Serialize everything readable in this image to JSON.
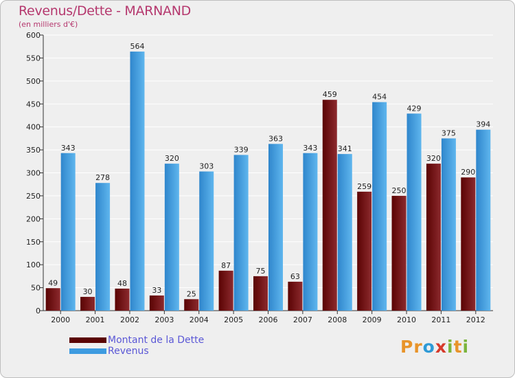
{
  "chart_data": {
    "type": "bar",
    "title": "Revenus/Dette - MARNAND",
    "subtitle": "(en milliers d'€)",
    "categories": [
      "2000",
      "2001",
      "2002",
      "2003",
      "2004",
      "2005",
      "2006",
      "2007",
      "2008",
      "2009",
      "2010",
      "2011",
      "2012"
    ],
    "series": [
      {
        "name": "Montant de la Dette",
        "color": "#7a1010",
        "values": [
          49,
          30,
          48,
          33,
          25,
          87,
          75,
          63,
          459,
          259,
          250,
          320,
          290
        ]
      },
      {
        "name": "Revenus",
        "color": "#3d9be0",
        "values": [
          343,
          278,
          564,
          320,
          303,
          339,
          363,
          343,
          341,
          454,
          429,
          375,
          394
        ]
      }
    ],
    "ylim": [
      0,
      600
    ],
    "yticks": [
      0,
      50,
      100,
      150,
      200,
      250,
      300,
      350,
      400,
      450,
      500,
      550,
      600
    ],
    "grid": true,
    "legend_position": "bottom-left"
  },
  "legend": {
    "debt_label": "Montant de la Dette",
    "revenue_label": "Revenus"
  },
  "logo": {
    "letters": [
      "P",
      "r",
      "o",
      "x",
      "i",
      "t",
      "i"
    ],
    "colors": [
      "#e8942a",
      "#e8942a",
      "#2e9ad6",
      "#d63a2b",
      "#7bb43c",
      "#e8942a",
      "#7bb43c"
    ]
  }
}
